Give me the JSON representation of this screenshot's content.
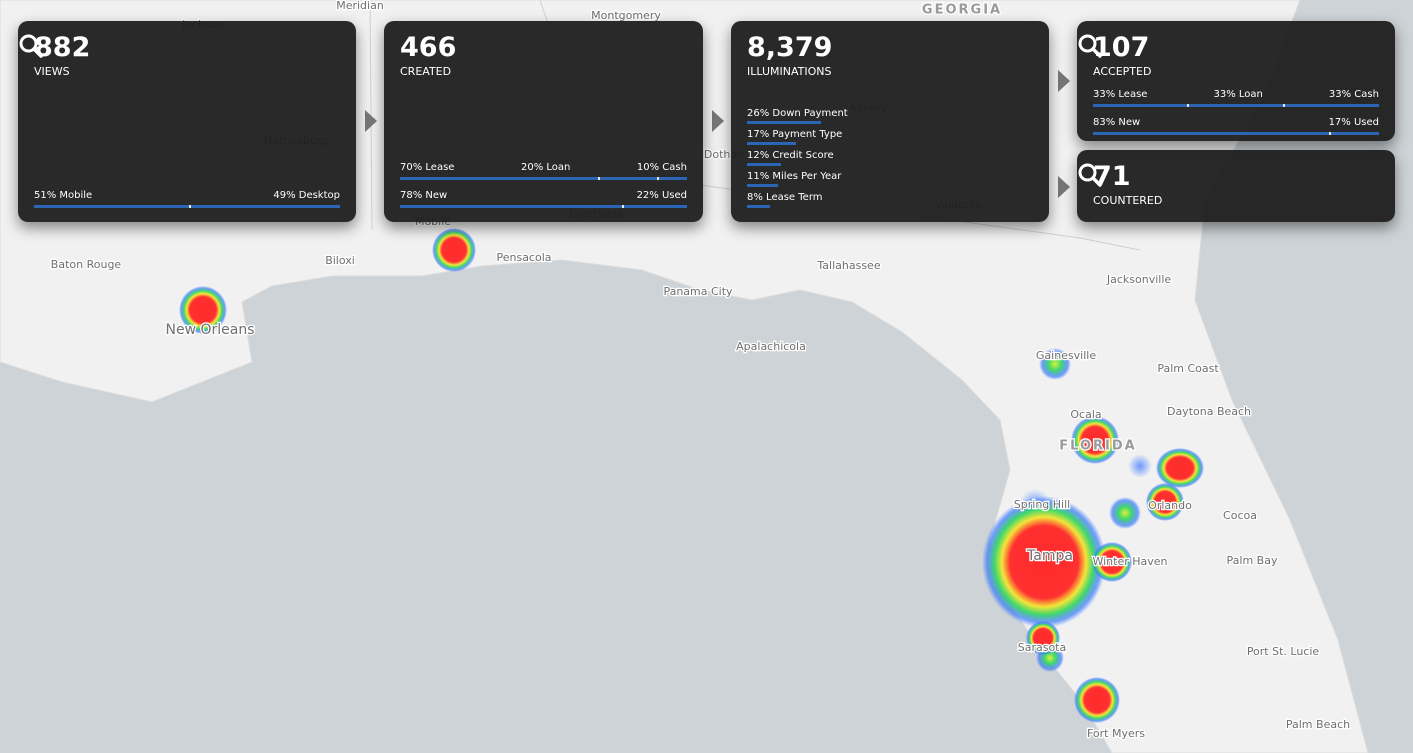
{
  "cards": [
    {
      "value": "882",
      "label": "VIEWS",
      "rows": [
        {
          "segments": [
            {
              "text": "51% Mobile",
              "value": 51
            },
            {
              "text": "49% Desktop",
              "value": 49
            }
          ]
        }
      ]
    },
    {
      "value": "466",
      "label": "CREATED",
      "rows": [
        {
          "segments": [
            {
              "text": "70% Lease",
              "value": 70
            },
            {
              "text": "20% Loan",
              "value": 20
            },
            {
              "text": "10% Cash",
              "value": 10
            }
          ]
        },
        {
          "segments": [
            {
              "text": "78% New",
              "value": 78
            },
            {
              "text": "22% Used",
              "value": 22
            }
          ]
        }
      ]
    },
    {
      "value": "8,379",
      "label": "ILLUMINATIONS",
      "items": [
        {
          "text": "26% Down Payment",
          "value": 26
        },
        {
          "text": "17% Payment Type",
          "value": 17
        },
        {
          "text": "12% Credit Score",
          "value": 12
        },
        {
          "text": "11% Miles Per Year",
          "value": 11
        },
        {
          "text": "8% Lease Term",
          "value": 8
        }
      ]
    },
    {
      "value": "107",
      "label": "ACCEPTED",
      "rows": [
        {
          "segments": [
            {
              "text": "33% Lease",
              "value": 33
            },
            {
              "text": "33% Loan",
              "value": 33
            },
            {
              "text": "33% Cash",
              "value": 33
            }
          ]
        },
        {
          "segments": [
            {
              "text": "83% New",
              "value": 83
            },
            {
              "text": "17% Used",
              "value": 17
            }
          ]
        }
      ]
    },
    {
      "value": "71",
      "label": "COUNTERED",
      "rows": []
    }
  ],
  "map": {
    "labels": [
      "Jackson",
      "Meridian",
      "Montgomery",
      "GEORGIA",
      "Hattiesburg",
      "Albany",
      "Dothan",
      "Mobile",
      "Crestview",
      "Valdosta",
      "Baton Rouge",
      "Biloxi",
      "Pensacola",
      "Tallahassee",
      "Jacksonville",
      "Panama City",
      "New Orleans",
      "Apalachicola",
      "Gainesville",
      "Palm Coast",
      "Ocala",
      "Daytona Beach",
      "FLORIDA",
      "Spring Hill",
      "Orlando",
      "Cocoa",
      "Tampa",
      "Winter Haven",
      "Palm Bay",
      "Sarasota",
      "Port St. Lucie",
      "Fort Myers",
      "Palm Beach"
    ]
  }
}
